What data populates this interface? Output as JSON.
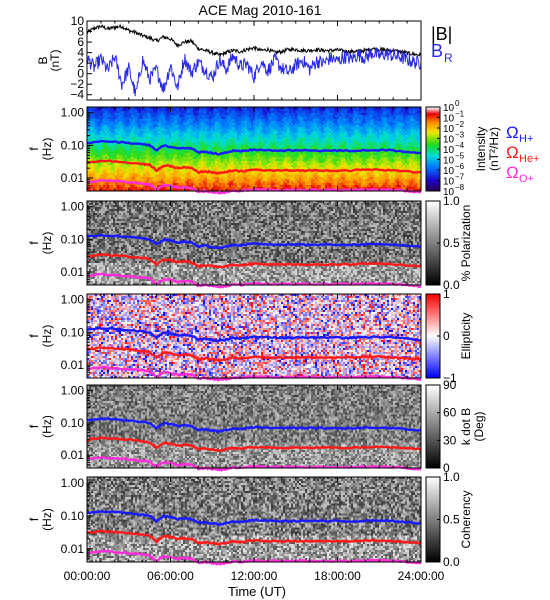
{
  "chart_data": {
    "type": "line",
    "title": "ACE Mag 2010-161",
    "xlabel": "Time (UT)",
    "xlim": [
      0,
      24
    ],
    "xticks": [
      "00:00:00",
      "06:00:00",
      "12:00:00",
      "18:00:00",
      "24:00:00"
    ],
    "panels": [
      {
        "name": "field",
        "ylabel": "B",
        "yunit": "(nT)",
        "ylim": [
          -5,
          10
        ],
        "yticks": [
          "10",
          "8",
          "6",
          "4",
          "2",
          "0",
          "−2",
          "−4"
        ],
        "series": [
          {
            "name": "|B|",
            "color": "#000000",
            "t": [
              0,
              0.5,
              1,
              1.5,
              2,
              2.5,
              3,
              3.5,
              4,
              4.5,
              5,
              5.5,
              6,
              6.5,
              7,
              7.5,
              8,
              8.5,
              9,
              9.5,
              10,
              10.5,
              11,
              11.5,
              12,
              12.5,
              13,
              13.5,
              14,
              14.5,
              15,
              15.5,
              16,
              16.5,
              17,
              17.5,
              18,
              18.5,
              19,
              19.5,
              20,
              20.5,
              21,
              21.5,
              22,
              22.5,
              23,
              23.5,
              24
            ],
            "values": [
              7.8,
              8.6,
              9.0,
              8.5,
              8.8,
              9.0,
              8.2,
              7.8,
              7.2,
              6.8,
              6.2,
              7.0,
              6.6,
              5.4,
              6.0,
              6.2,
              4.8,
              4.4,
              4.0,
              3.5,
              4.0,
              4.4,
              4.2,
              4.6,
              4.9,
              4.4,
              4.6,
              4.0,
              4.2,
              4.6,
              4.6,
              4.4,
              4.4,
              4.6,
              4.4,
              4.4,
              4.5,
              4.3,
              4.2,
              4.3,
              4.4,
              4.8,
              4.6,
              4.5,
              4.4,
              4.2,
              3.9,
              3.7,
              3.5
            ]
          },
          {
            "name": "B",
            "subscript": "R",
            "color": "#2a2ae6",
            "t": [
              0,
              0.5,
              1,
              1.5,
              2,
              2.5,
              3,
              3.5,
              4,
              4.5,
              5,
              5.5,
              6,
              6.5,
              7,
              7.5,
              8,
              8.5,
              9,
              9.5,
              10,
              10.5,
              11,
              11.5,
              12,
              12.5,
              13,
              13.5,
              14,
              14.5,
              15,
              15.5,
              16,
              16.5,
              17,
              17.5,
              18,
              18.5,
              19,
              19.5,
              20,
              20.5,
              21,
              21.5,
              22,
              22.5,
              23,
              23.5,
              24
            ],
            "values": [
              3.0,
              1.2,
              2.8,
              0.6,
              3.2,
              -2.0,
              1.0,
              -4.0,
              2.6,
              -1.0,
              0.8,
              -3.0,
              1.6,
              -2.8,
              3.0,
              0.2,
              2.2,
              0.8,
              -0.8,
              2.6,
              0.8,
              3.4,
              1.4,
              1.8,
              -0.6,
              2.4,
              0.6,
              2.6,
              1.0,
              0.2,
              1.6,
              2.6,
              0.8,
              2.4,
              2.0,
              3.0,
              2.4,
              3.2,
              2.8,
              3.6,
              3.0,
              4.0,
              3.4,
              3.8,
              3.4,
              3.2,
              2.6,
              2.2,
              2.0
            ]
          }
        ]
      },
      {
        "name": "intensity",
        "ylabel": "f",
        "yunit": "(Hz)",
        "yscale": "log",
        "ylim": [
          0.004,
          1.5
        ],
        "yticks": [
          "1.00",
          "0.10",
          "0.01"
        ],
        "colorbar": {
          "label": "Intensity",
          "unit": "(nT²/Hz)",
          "ticks": [
            "10",
            "10",
            "10",
            "10",
            "10",
            "10",
            "10",
            "10",
            "10"
          ],
          "exponents": [
            "0",
            "−1",
            "−2",
            "−3",
            "−4",
            "−5",
            "−6",
            "−7",
            "−8"
          ],
          "colormap": "rainbow"
        }
      },
      {
        "name": "polarization",
        "ylabel": "f",
        "yunit": "(Hz)",
        "yscale": "log",
        "yticks": [
          "1.00",
          "0.10",
          "0.01"
        ],
        "colorbar": {
          "label": "% Polarization",
          "ticks": [
            "1.0",
            "0.5",
            "0.0"
          ],
          "colormap": "gray"
        }
      },
      {
        "name": "ellipticity",
        "ylabel": "f",
        "yunit": "(Hz)",
        "yscale": "log",
        "yticks": [
          "1.00",
          "0.10",
          "0.01"
        ],
        "colorbar": {
          "label": "Ellipticity",
          "ticks": [
            "1",
            "0",
            "−1"
          ],
          "colormap": "red-white-blue"
        }
      },
      {
        "name": "kdotb",
        "ylabel": "f",
        "yunit": "(Hz)",
        "yscale": "log",
        "yticks": [
          "1.00",
          "0.10",
          "0.01"
        ],
        "colorbar": {
          "label": "k dot B",
          "unit": "(Deg)",
          "ticks": [
            "90",
            "60",
            "30",
            "0"
          ],
          "colormap": "gray"
        }
      },
      {
        "name": "coherency",
        "ylabel": "f",
        "yunit": "(Hz)",
        "yscale": "log",
        "yticks": [
          "1.00",
          "0.10",
          "0.01"
        ],
        "colorbar": {
          "label": "Coherency",
          "ticks": [
            "1.0",
            "0.5",
            "0.0"
          ],
          "colormap": "gray"
        }
      }
    ],
    "gyrofrequencies": [
      {
        "name": "Ω",
        "subscript": "H+",
        "color": "#1a1aff",
        "t": [
          0,
          1,
          2,
          3,
          4,
          4.5,
          5,
          5.5,
          6,
          6.5,
          7,
          7.5,
          8,
          8.5,
          9,
          9.5,
          10,
          10.5,
          11,
          11.5,
          12,
          13,
          14,
          15,
          16,
          17,
          18,
          19,
          20,
          21,
          22,
          23,
          24
        ],
        "values": [
          0.12,
          0.135,
          0.13,
          0.118,
          0.107,
          0.1,
          0.07,
          0.098,
          0.092,
          0.08,
          0.085,
          0.08,
          0.06,
          0.065,
          0.058,
          0.055,
          0.06,
          0.068,
          0.065,
          0.07,
          0.074,
          0.07,
          0.069,
          0.07,
          0.07,
          0.069,
          0.069,
          0.068,
          0.071,
          0.072,
          0.07,
          0.064,
          0.058
        ]
      },
      {
        "name": "Ω",
        "subscript": "He+",
        "color": "#ff1a1a",
        "t": [
          0,
          1,
          2,
          3,
          4,
          4.5,
          5,
          5.5,
          6,
          6.5,
          7,
          7.5,
          8,
          8.5,
          9,
          9.5,
          10,
          10.5,
          11,
          11.5,
          12,
          13,
          14,
          15,
          16,
          17,
          18,
          19,
          20,
          21,
          22,
          23,
          24
        ],
        "values": [
          0.03,
          0.034,
          0.032,
          0.03,
          0.027,
          0.025,
          0.017,
          0.024,
          0.023,
          0.02,
          0.021,
          0.02,
          0.015,
          0.016,
          0.015,
          0.014,
          0.015,
          0.017,
          0.016,
          0.017,
          0.018,
          0.017,
          0.017,
          0.017,
          0.017,
          0.017,
          0.017,
          0.017,
          0.018,
          0.018,
          0.017,
          0.016,
          0.015
        ]
      },
      {
        "name": "Ω",
        "subscript": "O+",
        "color": "#ff2ed9",
        "t": [
          0,
          1,
          2,
          3,
          4,
          4.5,
          5,
          5.5,
          6,
          6.5,
          7,
          7.5,
          8,
          8.5,
          9,
          9.5,
          10,
          10.5,
          11,
          11.5,
          12,
          13,
          14,
          15,
          16,
          17,
          18,
          19,
          20,
          21,
          22,
          23,
          24
        ],
        "values": [
          0.0075,
          0.0085,
          0.008,
          0.0074,
          0.0067,
          0.0063,
          0.0043,
          0.006,
          0.0057,
          0.005,
          0.0053,
          0.005,
          0.0038,
          0.004,
          0.0037,
          0.0035,
          0.0037,
          0.0042,
          0.004,
          0.0043,
          0.0045,
          0.0043,
          0.0043,
          0.0043,
          0.0043,
          0.0043,
          0.0043,
          0.0042,
          0.0044,
          0.0045,
          0.0043,
          0.004,
          0.0036
        ]
      }
    ]
  }
}
